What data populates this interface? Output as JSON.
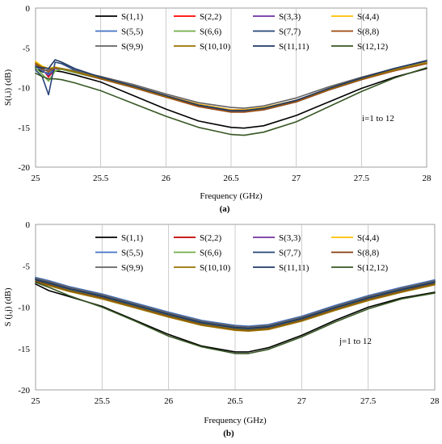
{
  "chart_data": [
    {
      "type": "line",
      "panel_label": "(a)",
      "xlabel": "Frequency (GHz)",
      "ylabel": "S(i,i) (dB)",
      "annotation": "i=1 to 12",
      "xlim": [
        25,
        28
      ],
      "ylim": [
        -20,
        0
      ],
      "x_ticks": [
        "25",
        "25.5",
        "26",
        "26.5",
        "27",
        "27.5",
        "28"
      ],
      "y_ticks": [
        "0",
        "-5",
        "-10",
        "-15",
        "-20"
      ],
      "grid": "vertical",
      "legend": "top, 4 columns",
      "x": [
        25.0,
        25.05,
        25.1,
        25.15,
        25.2,
        25.3,
        25.5,
        25.75,
        26.0,
        26.25,
        26.5,
        26.6,
        26.75,
        27.0,
        27.25,
        27.5,
        27.75,
        28.0
      ],
      "series": [
        {
          "name": "S(1,1)",
          "color": "#000000",
          "values": [
            -7.6,
            -8.0,
            -8.2,
            -7.9,
            -8.0,
            -8.4,
            -9.3,
            -11.0,
            -12.7,
            -14.2,
            -15.0,
            -15.1,
            -14.8,
            -13.5,
            -11.8,
            -10.1,
            -8.7,
            -7.6
          ]
        },
        {
          "name": "S(2,2)",
          "color": "#ff0000",
          "values": [
            -7.0,
            -7.6,
            -8.7,
            -7.6,
            -7.6,
            -8.0,
            -8.8,
            -9.8,
            -11.0,
            -12.1,
            -12.8,
            -12.8,
            -12.6,
            -11.6,
            -10.1,
            -8.8,
            -7.7,
            -6.8
          ]
        },
        {
          "name": "S(3,3)",
          "color": "#7030a0",
          "values": [
            -7.2,
            -7.8,
            -8.5,
            -7.6,
            -7.7,
            -8.1,
            -8.9,
            -9.9,
            -11.1,
            -12.2,
            -12.9,
            -12.9,
            -12.7,
            -11.7,
            -10.2,
            -8.9,
            -7.8,
            -6.9
          ]
        },
        {
          "name": "S(4,4)",
          "color": "#ffc000",
          "values": [
            -6.7,
            -7.3,
            -7.6,
            -7.4,
            -7.6,
            -8.0,
            -8.8,
            -9.8,
            -11.0,
            -12.1,
            -12.8,
            -12.8,
            -12.5,
            -11.6,
            -10.1,
            -8.8,
            -7.7,
            -6.8
          ]
        },
        {
          "name": "S(5,5)",
          "color": "#4472c4",
          "values": [
            -7.3,
            -7.9,
            -8.3,
            -7.5,
            -7.6,
            -8.0,
            -8.9,
            -10.0,
            -11.2,
            -12.3,
            -13.0,
            -13.0,
            -12.8,
            -11.8,
            -10.3,
            -9.0,
            -7.8,
            -6.9
          ]
        },
        {
          "name": "S(6,6)",
          "color": "#70ad47",
          "values": [
            -7.5,
            -8.3,
            -9.2,
            -7.9,
            -7.7,
            -8.1,
            -8.9,
            -9.9,
            -11.1,
            -12.2,
            -12.9,
            -12.9,
            -12.7,
            -11.7,
            -10.2,
            -8.9,
            -7.8,
            -6.9
          ]
        },
        {
          "name": "S(7,7)",
          "color": "#264478",
          "values": [
            -7.8,
            -8.6,
            -10.9,
            -6.8,
            -7.0,
            -7.8,
            -8.8,
            -9.9,
            -11.1,
            -12.2,
            -12.9,
            -12.9,
            -12.6,
            -11.6,
            -10.1,
            -8.8,
            -7.6,
            -6.6
          ]
        },
        {
          "name": "S(8,8)",
          "color": "#9e480e",
          "values": [
            -7.0,
            -7.6,
            -8.0,
            -7.5,
            -7.6,
            -8.0,
            -8.9,
            -10.0,
            -11.2,
            -12.4,
            -13.1,
            -13.1,
            -12.8,
            -11.8,
            -10.3,
            -9.0,
            -7.9,
            -7.0
          ]
        },
        {
          "name": "S(9,9)",
          "color": "#636363",
          "values": [
            -7.2,
            -7.8,
            -7.8,
            -7.5,
            -7.6,
            -7.9,
            -8.6,
            -9.6,
            -10.8,
            -11.9,
            -12.5,
            -12.6,
            -12.3,
            -11.3,
            -9.9,
            -8.7,
            -7.6,
            -6.7
          ]
        },
        {
          "name": "S(10,10)",
          "color": "#997300",
          "values": [
            -6.9,
            -7.4,
            -7.6,
            -7.5,
            -7.6,
            -8.0,
            -8.8,
            -9.9,
            -11.1,
            -12.2,
            -12.9,
            -12.9,
            -12.6,
            -11.6,
            -10.2,
            -8.9,
            -7.8,
            -6.9
          ]
        },
        {
          "name": "S(11,11)",
          "color": "#203864",
          "values": [
            -7.4,
            -7.5,
            -7.6,
            -6.5,
            -6.8,
            -7.6,
            -8.7,
            -9.8,
            -11.0,
            -12.2,
            -12.9,
            -12.9,
            -12.6,
            -11.6,
            -10.1,
            -8.8,
            -7.6,
            -6.6
          ]
        },
        {
          "name": "S(12,12)",
          "color": "#375623",
          "values": [
            -8.2,
            -8.6,
            -8.9,
            -8.9,
            -9.0,
            -9.4,
            -10.4,
            -12.0,
            -13.6,
            -15.0,
            -15.9,
            -16.0,
            -15.6,
            -14.3,
            -12.4,
            -10.5,
            -8.8,
            -7.5
          ]
        }
      ]
    },
    {
      "type": "line",
      "panel_label": "(b)",
      "xlabel": "Frequency (GHz)",
      "ylabel": "S (j,j) (dB)",
      "annotation": "j=1 to 12",
      "xlim": [
        25,
        28
      ],
      "ylim": [
        -20,
        0
      ],
      "x_ticks": [
        "25",
        "25.5",
        "26",
        "26.5",
        "27",
        "27.5",
        "28"
      ],
      "y_ticks": [
        "0",
        "-5",
        "-10",
        "-15",
        "-20"
      ],
      "grid": "vertical",
      "legend": "top, 4 columns",
      "x": [
        25.0,
        25.1,
        25.25,
        25.5,
        25.75,
        26.0,
        26.25,
        26.5,
        26.6,
        26.75,
        27.0,
        27.25,
        27.5,
        27.75,
        28.0
      ],
      "series": [
        {
          "name": "S(1,1)",
          "color": "#000000",
          "values": [
            -7.2,
            -8.0,
            -8.7,
            -9.9,
            -11.6,
            -13.3,
            -14.7,
            -15.4,
            -15.4,
            -14.9,
            -13.4,
            -11.6,
            -10.0,
            -8.9,
            -8.2
          ]
        },
        {
          "name": "S(2,2)",
          "color": "#c00000",
          "values": [
            -6.6,
            -7.0,
            -7.7,
            -8.6,
            -9.7,
            -10.8,
            -11.8,
            -12.4,
            -12.5,
            -12.3,
            -11.3,
            -10.0,
            -8.8,
            -7.8,
            -6.9
          ]
        },
        {
          "name": "S(3,3)",
          "color": "#7030a0",
          "values": [
            -6.5,
            -6.9,
            -7.6,
            -8.5,
            -9.6,
            -10.7,
            -11.7,
            -12.3,
            -12.4,
            -12.2,
            -11.2,
            -9.9,
            -8.7,
            -7.7,
            -6.8
          ]
        },
        {
          "name": "S(4,4)",
          "color": "#ffc000",
          "values": [
            -6.7,
            -7.1,
            -7.8,
            -8.7,
            -9.8,
            -10.9,
            -11.9,
            -12.5,
            -12.6,
            -12.4,
            -11.4,
            -10.1,
            -8.9,
            -7.9,
            -7.0
          ]
        },
        {
          "name": "S(5,5)",
          "color": "#4472c4",
          "values": [
            -6.4,
            -6.8,
            -7.5,
            -8.4,
            -9.5,
            -10.6,
            -11.6,
            -12.2,
            -12.3,
            -12.1,
            -11.1,
            -9.8,
            -8.6,
            -7.6,
            -6.7
          ]
        },
        {
          "name": "S(6,6)",
          "color": "#70ad47",
          "values": [
            -6.8,
            -7.2,
            -7.9,
            -8.8,
            -9.9,
            -11.0,
            -12.0,
            -12.6,
            -12.7,
            -12.5,
            -11.5,
            -10.2,
            -9.0,
            -8.0,
            -7.1
          ]
        },
        {
          "name": "S(7,7)",
          "color": "#264478",
          "values": [
            -6.6,
            -7.0,
            -7.7,
            -8.6,
            -9.7,
            -10.8,
            -11.8,
            -12.4,
            -12.5,
            -12.3,
            -11.3,
            -10.0,
            -8.8,
            -7.8,
            -6.9
          ]
        },
        {
          "name": "S(8,8)",
          "color": "#843c0c",
          "values": [
            -6.9,
            -7.3,
            -8.0,
            -8.9,
            -10.0,
            -11.1,
            -12.1,
            -12.7,
            -12.8,
            -12.6,
            -11.6,
            -10.3,
            -9.1,
            -8.1,
            -7.2
          ]
        },
        {
          "name": "S(9,9)",
          "color": "#636363",
          "values": [
            -6.5,
            -6.9,
            -7.6,
            -8.5,
            -9.6,
            -10.7,
            -11.7,
            -12.3,
            -12.4,
            -12.2,
            -11.2,
            -9.9,
            -8.7,
            -7.7,
            -6.8
          ]
        },
        {
          "name": "S(10,10)",
          "color": "#997300",
          "values": [
            -7.0,
            -7.4,
            -8.1,
            -9.0,
            -10.1,
            -11.2,
            -12.2,
            -12.8,
            -12.9,
            -12.7,
            -11.7,
            -10.4,
            -9.2,
            -8.2,
            -7.3
          ]
        },
        {
          "name": "S(11,11)",
          "color": "#203864",
          "values": [
            -6.7,
            -7.1,
            -7.8,
            -8.7,
            -9.8,
            -10.9,
            -11.9,
            -12.5,
            -12.6,
            -12.4,
            -11.4,
            -10.1,
            -8.9,
            -7.9,
            -7.0
          ]
        },
        {
          "name": "S(12,12)",
          "color": "#375623",
          "values": [
            -7.0,
            -7.6,
            -8.6,
            -10.0,
            -11.7,
            -13.5,
            -14.8,
            -15.6,
            -15.6,
            -15.1,
            -13.6,
            -11.8,
            -10.2,
            -9.0,
            -8.3
          ]
        }
      ]
    }
  ]
}
